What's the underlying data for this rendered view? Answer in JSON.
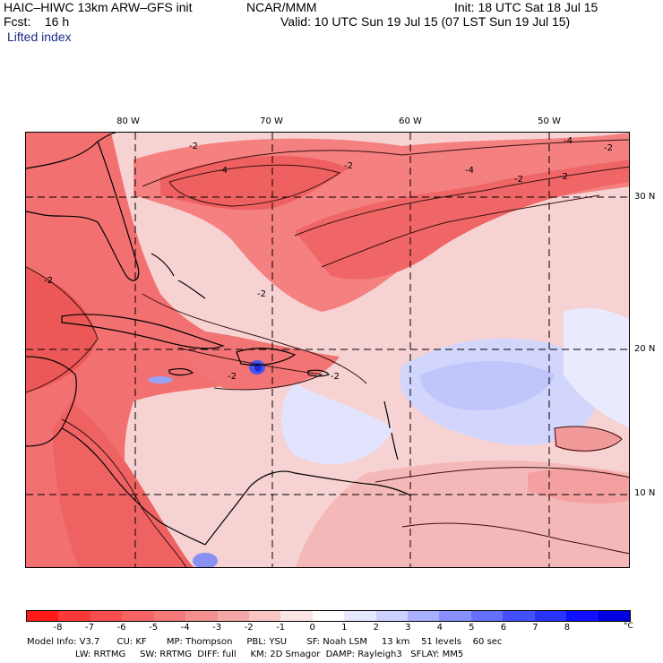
{
  "header": {
    "model": "HAIC–HIWC 13km ARW–GFS init",
    "org": "NCAR/MMM",
    "init": "Init: 18 UTC Sat 18 Jul 15",
    "fcst": "Fcst:    16 h",
    "valid": "Valid: 10 UTC Sun 19 Jul 15 (07 LST Sun 19 Jul 15)",
    "field": "Lifted index"
  },
  "map": {
    "lon_labels": [
      "80 W",
      "70 W",
      "60 W",
      "50 W"
    ],
    "lat_labels": [
      "30 N",
      "20 N",
      "10 N"
    ],
    "contour_labels": [
      "-2",
      "-4",
      "-2",
      "-4",
      "-2",
      "-2",
      "-4",
      "-2",
      "-2",
      "-2",
      "-2",
      "-2"
    ]
  },
  "colorbar": {
    "ticks": [
      "-8",
      "-7",
      "-6",
      "-5",
      "-4",
      "-3",
      "-2",
      "-1",
      "0",
      "1",
      "2",
      "3",
      "4",
      "5",
      "6",
      "7",
      "8"
    ],
    "unit": "°C",
    "colors": [
      "#ff1a1a",
      "#ff3838",
      "#fc4e4e",
      "#f86464",
      "#f47a7a",
      "#f29090",
      "#f4a8a8",
      "#f8c4c4",
      "#fde4e4",
      "#ffffff",
      "#e6e8ff",
      "#ccd0ff",
      "#aab0ff",
      "#8890ff",
      "#6670ff",
      "#4450ff",
      "#2a34ff",
      "#1010ff",
      "#0000e0"
    ]
  },
  "info": {
    "line1": "Model Info: V3.7      CU: KF       MP: Thompson     PBL: YSU       SF: Noah LSM     13 km    51 levels    60 sec",
    "line2": "                 LW: RRTMG     SW: RRTMG  DIFF: full     KM: 2D Smagor  DAMP: Rayleigh3   SFLAY: MM5"
  }
}
